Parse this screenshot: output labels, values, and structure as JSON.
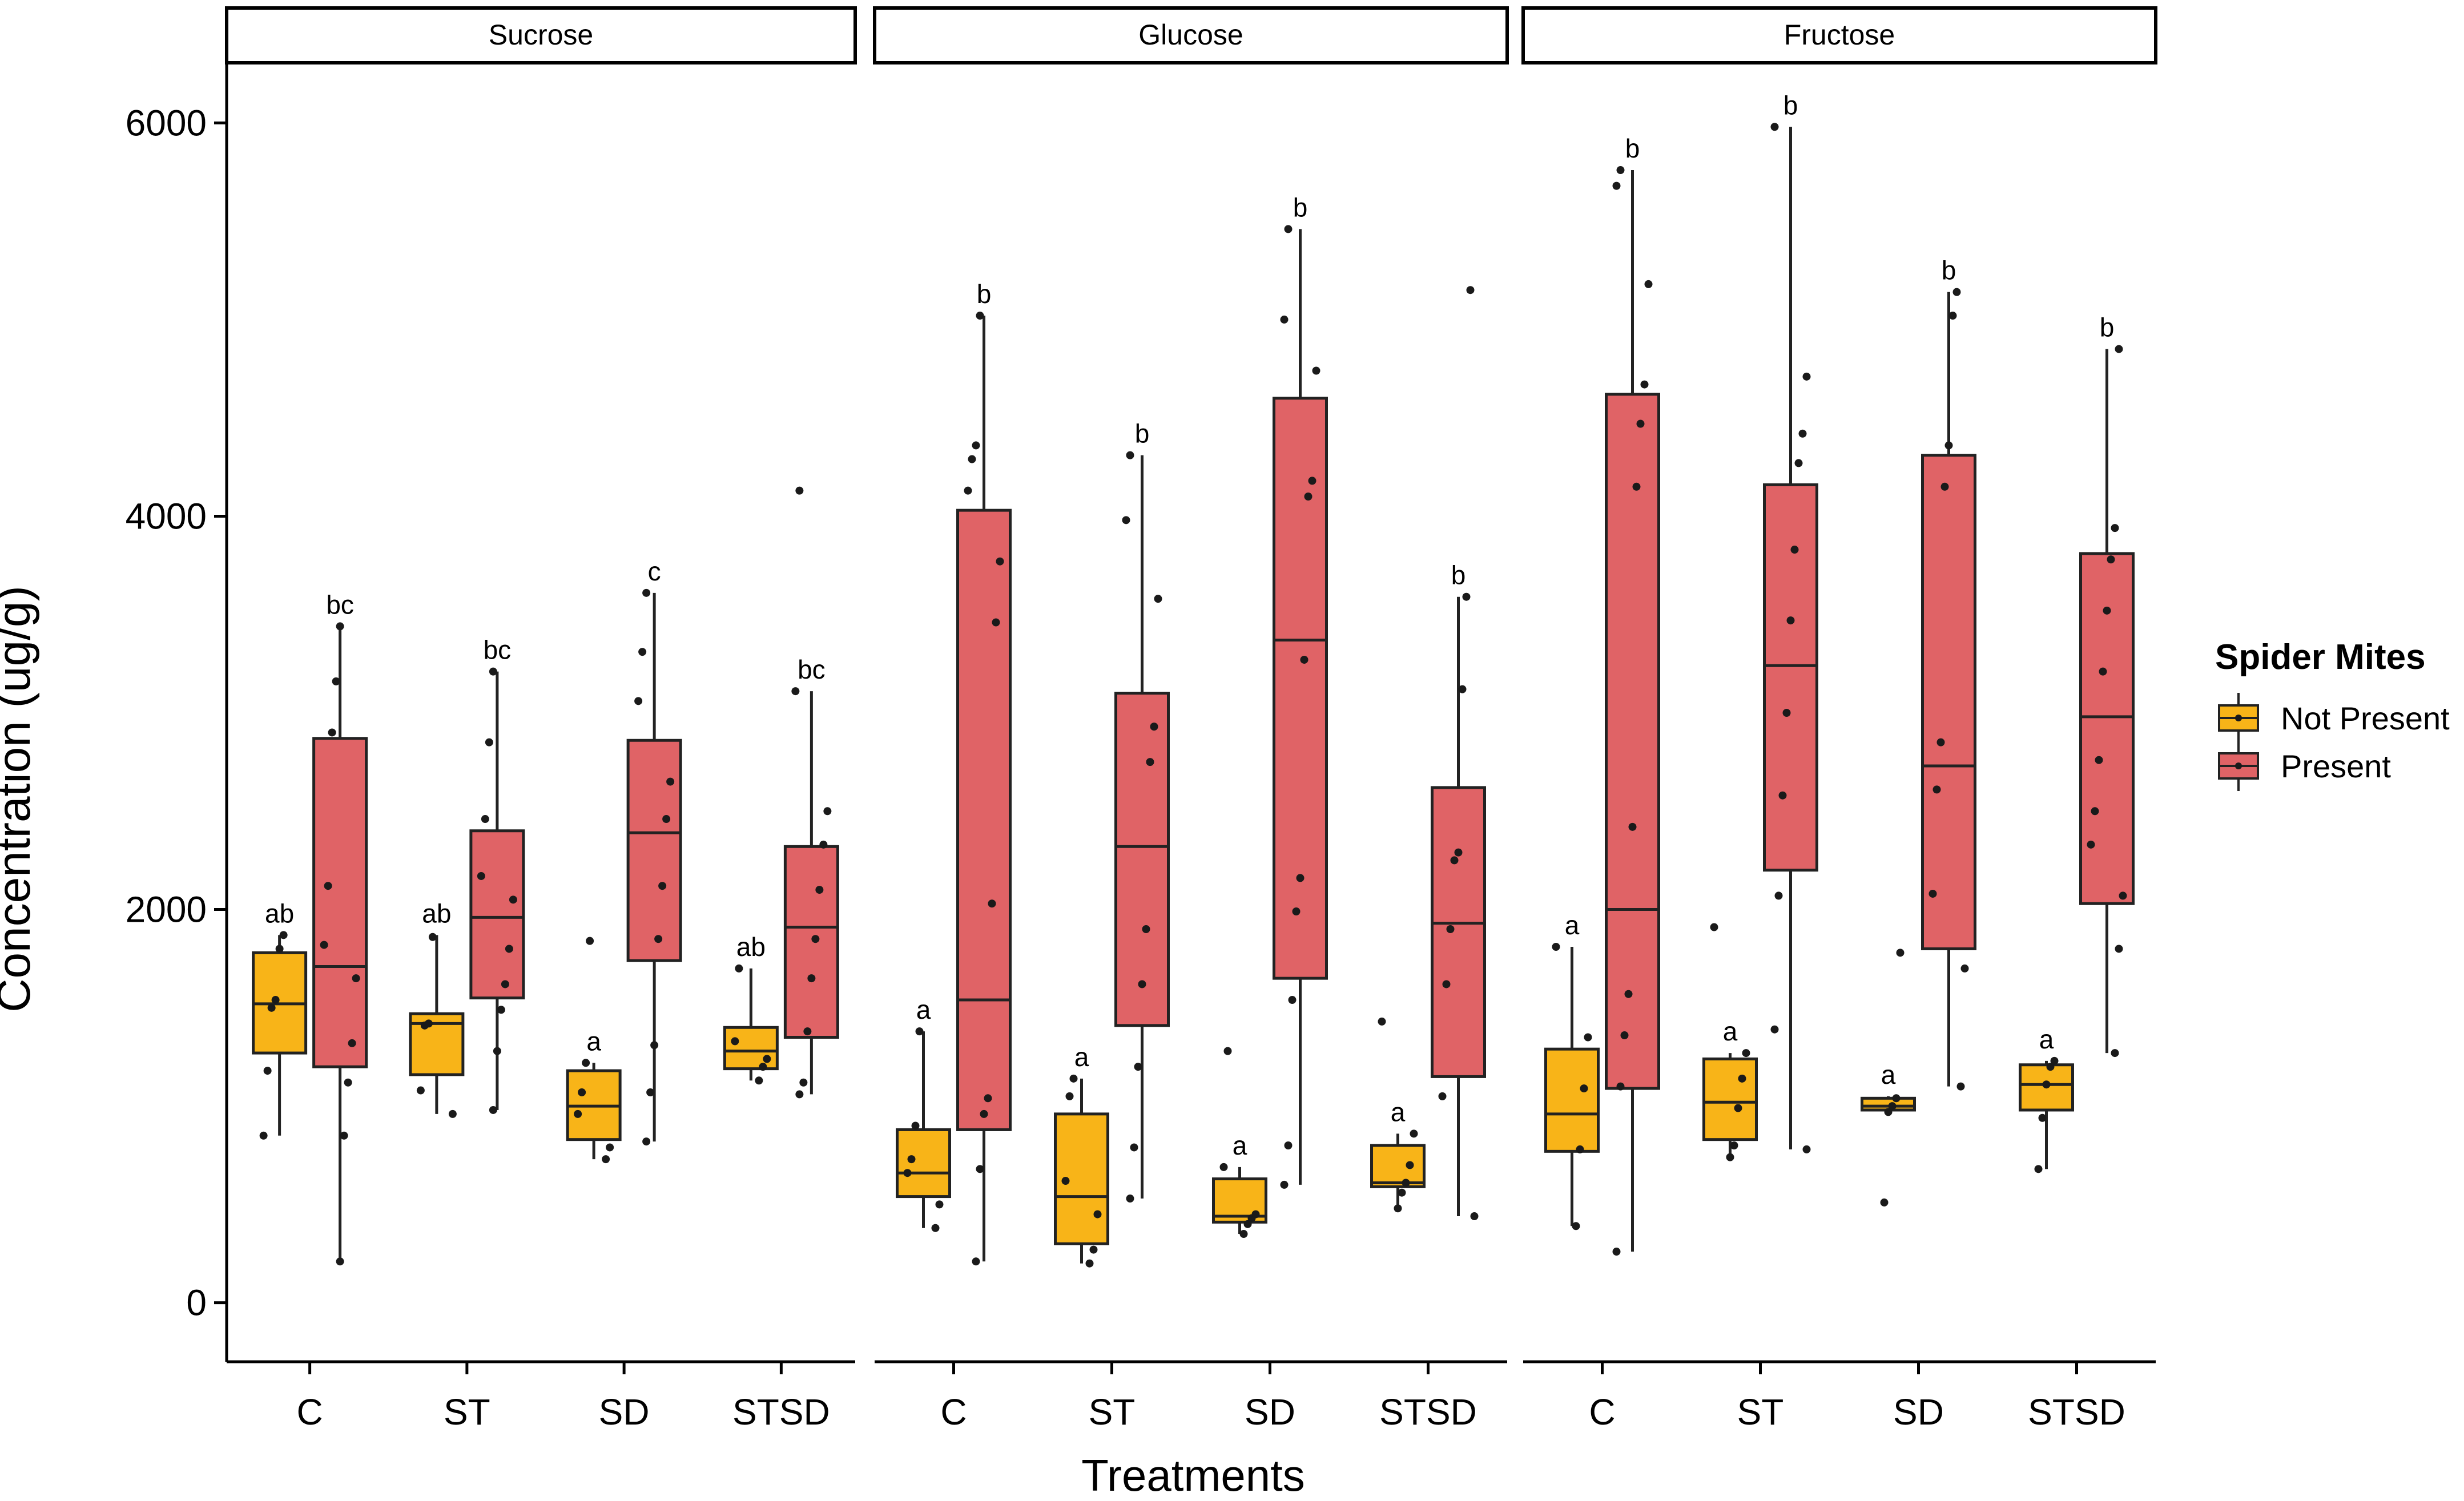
{
  "chart_data": {
    "type": "boxplot",
    "ylabel": "Concentration (ug/g)",
    "xlabel": "Treatments",
    "ylim": [
      -300,
      6300
    ],
    "yticks": [
      0,
      2000,
      4000,
      6000
    ],
    "categories": [
      "C",
      "ST",
      "SD",
      "STSD"
    ],
    "legend": {
      "title": "Spider Mites",
      "position": "right",
      "entries": [
        {
          "label": "Not Present",
          "color": "#F8B418"
        },
        {
          "label": "Present",
          "color": "#E06366"
        }
      ]
    },
    "panels": [
      {
        "title": "Sucrose",
        "groups": [
          {
            "category": "C",
            "series": "Not Present",
            "min": 850,
            "q1": 1270,
            "median": 1520,
            "q3": 1780,
            "max": 1870,
            "label": "ab",
            "points": [
              850,
              1180,
              1500,
              1540,
              1800,
              1870
            ]
          },
          {
            "category": "C",
            "series": "Present",
            "min": 210,
            "q1": 1200,
            "median": 1710,
            "q3": 2870,
            "max": 3440,
            "label": "bc",
            "points": [
              210,
              850,
              1120,
              1320,
              1650,
              1820,
              2120,
              2900,
              3160,
              3440
            ]
          },
          {
            "category": "ST",
            "series": "Not Present",
            "min": 960,
            "q1": 1160,
            "median": 1420,
            "q3": 1470,
            "max": 1870,
            "label": "ab",
            "points": [
              960,
              1080,
              1410,
              1420,
              1860
            ]
          },
          {
            "category": "ST",
            "series": "Present",
            "min": 980,
            "q1": 1550,
            "median": 1960,
            "q3": 2400,
            "max": 3210,
            "label": "bc",
            "points": [
              980,
              1280,
              1490,
              1620,
              1800,
              2050,
              2170,
              2460,
              2850,
              3210
            ]
          },
          {
            "category": "SD",
            "series": "Not Present",
            "min": 730,
            "q1": 830,
            "median": 1000,
            "q3": 1180,
            "max": 1220,
            "label": "a",
            "points": [
              730,
              790,
              960,
              1070,
              1220,
              1840
            ]
          },
          {
            "category": "SD",
            "series": "Present",
            "min": 820,
            "q1": 1740,
            "median": 2390,
            "q3": 2860,
            "max": 3610,
            "label": "c",
            "points": [
              820,
              1070,
              1310,
              1850,
              2120,
              2460,
              2650,
              3060,
              3310,
              3610
            ]
          },
          {
            "category": "STSD",
            "series": "Not Present",
            "min": 1130,
            "q1": 1190,
            "median": 1280,
            "q3": 1400,
            "max": 1700,
            "label": "ab",
            "points": [
              1130,
              1200,
              1240,
              1330,
              1700
            ]
          },
          {
            "category": "STSD",
            "series": "Present",
            "min": 1060,
            "q1": 1350,
            "median": 1910,
            "q3": 2320,
            "max": 3110,
            "label": "bc",
            "points": [
              1060,
              1120,
              1380,
              1650,
              1850,
              2100,
              2330,
              2500,
              3110,
              4130
            ]
          }
        ]
      },
      {
        "title": "Glucose",
        "groups": [
          {
            "category": "C",
            "series": "Not Present",
            "min": 380,
            "q1": 540,
            "median": 660,
            "q3": 880,
            "max": 1380,
            "label": "a",
            "points": [
              380,
              500,
              660,
              730,
              900,
              1380
            ]
          },
          {
            "category": "C",
            "series": "Present",
            "min": 210,
            "q1": 880,
            "median": 1540,
            "q3": 4030,
            "max": 5020,
            "label": "b",
            "points": [
              210,
              680,
              960,
              1040,
              2030,
              3460,
              3770,
              4130,
              4290,
              4360,
              5020
            ]
          },
          {
            "category": "ST",
            "series": "Not Present",
            "min": 200,
            "q1": 300,
            "median": 540,
            "q3": 960,
            "max": 1140,
            "label": "a",
            "points": [
              200,
              270,
              450,
              620,
              1050,
              1140
            ]
          },
          {
            "category": "ST",
            "series": "Present",
            "min": 530,
            "q1": 1410,
            "median": 2320,
            "q3": 3100,
            "max": 4310,
            "label": "b",
            "points": [
              530,
              790,
              1200,
              1620,
              1900,
              2750,
              2930,
              3580,
              3980,
              4310
            ]
          },
          {
            "category": "SD",
            "series": "Not Present",
            "min": 350,
            "q1": 410,
            "median": 440,
            "q3": 630,
            "max": 690,
            "label": "a",
            "points": [
              350,
              400,
              430,
              450,
              690,
              1280
            ]
          },
          {
            "category": "SD",
            "series": "Present",
            "min": 600,
            "q1": 1650,
            "median": 3370,
            "q3": 4600,
            "max": 5460,
            "label": "b",
            "points": [
              600,
              800,
              1540,
              1990,
              2160,
              3270,
              4100,
              4180,
              4740,
              5000,
              5460
            ]
          },
          {
            "category": "STSD",
            "series": "Not Present",
            "min": 480,
            "q1": 590,
            "median": 610,
            "q3": 800,
            "max": 860,
            "label": "a",
            "points": [
              480,
              560,
              610,
              700,
              860,
              1430
            ]
          },
          {
            "category": "STSD",
            "series": "Present",
            "min": 440,
            "q1": 1150,
            "median": 1930,
            "q3": 2620,
            "max": 3590,
            "label": "b",
            "points": [
              440,
              1050,
              1620,
              1900,
              2250,
              2290,
              3120,
              3590,
              5150
            ]
          }
        ]
      },
      {
        "title": "Fructose",
        "groups": [
          {
            "category": "C",
            "series": "Not Present",
            "min": 390,
            "q1": 770,
            "median": 960,
            "q3": 1290,
            "max": 1810,
            "label": "a",
            "points": [
              390,
              780,
              1090,
              1350,
              1810
            ]
          },
          {
            "category": "C",
            "series": "Present",
            "min": 260,
            "q1": 1090,
            "median": 2000,
            "q3": 4620,
            "max": 5760,
            "label": "b",
            "points": [
              260,
              1100,
              1360,
              1570,
              2420,
              4150,
              4470,
              4670,
              5180,
              5680,
              5760
            ]
          },
          {
            "category": "ST",
            "series": "Not Present",
            "min": 740,
            "q1": 830,
            "median": 1020,
            "q3": 1240,
            "max": 1270,
            "label": "a",
            "points": [
              740,
              800,
              990,
              1140,
              1270,
              1910
            ]
          },
          {
            "category": "ST",
            "series": "Present",
            "min": 780,
            "q1": 2200,
            "median": 3240,
            "q3": 4160,
            "max": 5980,
            "label": "b",
            "points": [
              780,
              1390,
              2070,
              2580,
              3000,
              3470,
              3830,
              4270,
              4420,
              4710,
              5980
            ]
          },
          {
            "category": "SD",
            "series": "Not Present",
            "min": 960,
            "q1": 980,
            "median": 1000,
            "q3": 1040,
            "max": 1050,
            "label": "a",
            "points": [
              510,
              970,
              1000,
              1040,
              1780
            ]
          },
          {
            "category": "SD",
            "series": "Present",
            "min": 1100,
            "q1": 1800,
            "median": 2730,
            "q3": 4310,
            "max": 5140,
            "label": "b",
            "points": [
              1100,
              1700,
              2080,
              2610,
              2850,
              4150,
              4360,
              5020,
              5140
            ]
          },
          {
            "category": "STSD",
            "series": "Not Present",
            "min": 680,
            "q1": 980,
            "median": 1110,
            "q3": 1210,
            "max": 1230,
            "label": "a",
            "points": [
              680,
              940,
              1110,
              1200,
              1230
            ]
          },
          {
            "category": "STSD",
            "series": "Present",
            "min": 1270,
            "q1": 2030,
            "median": 2980,
            "q3": 3810,
            "max": 4850,
            "label": "b",
            "points": [
              1270,
              1800,
              2070,
              2330,
              2500,
              2760,
              3210,
              3520,
              3780,
              3940,
              4850
            ]
          }
        ]
      }
    ]
  }
}
